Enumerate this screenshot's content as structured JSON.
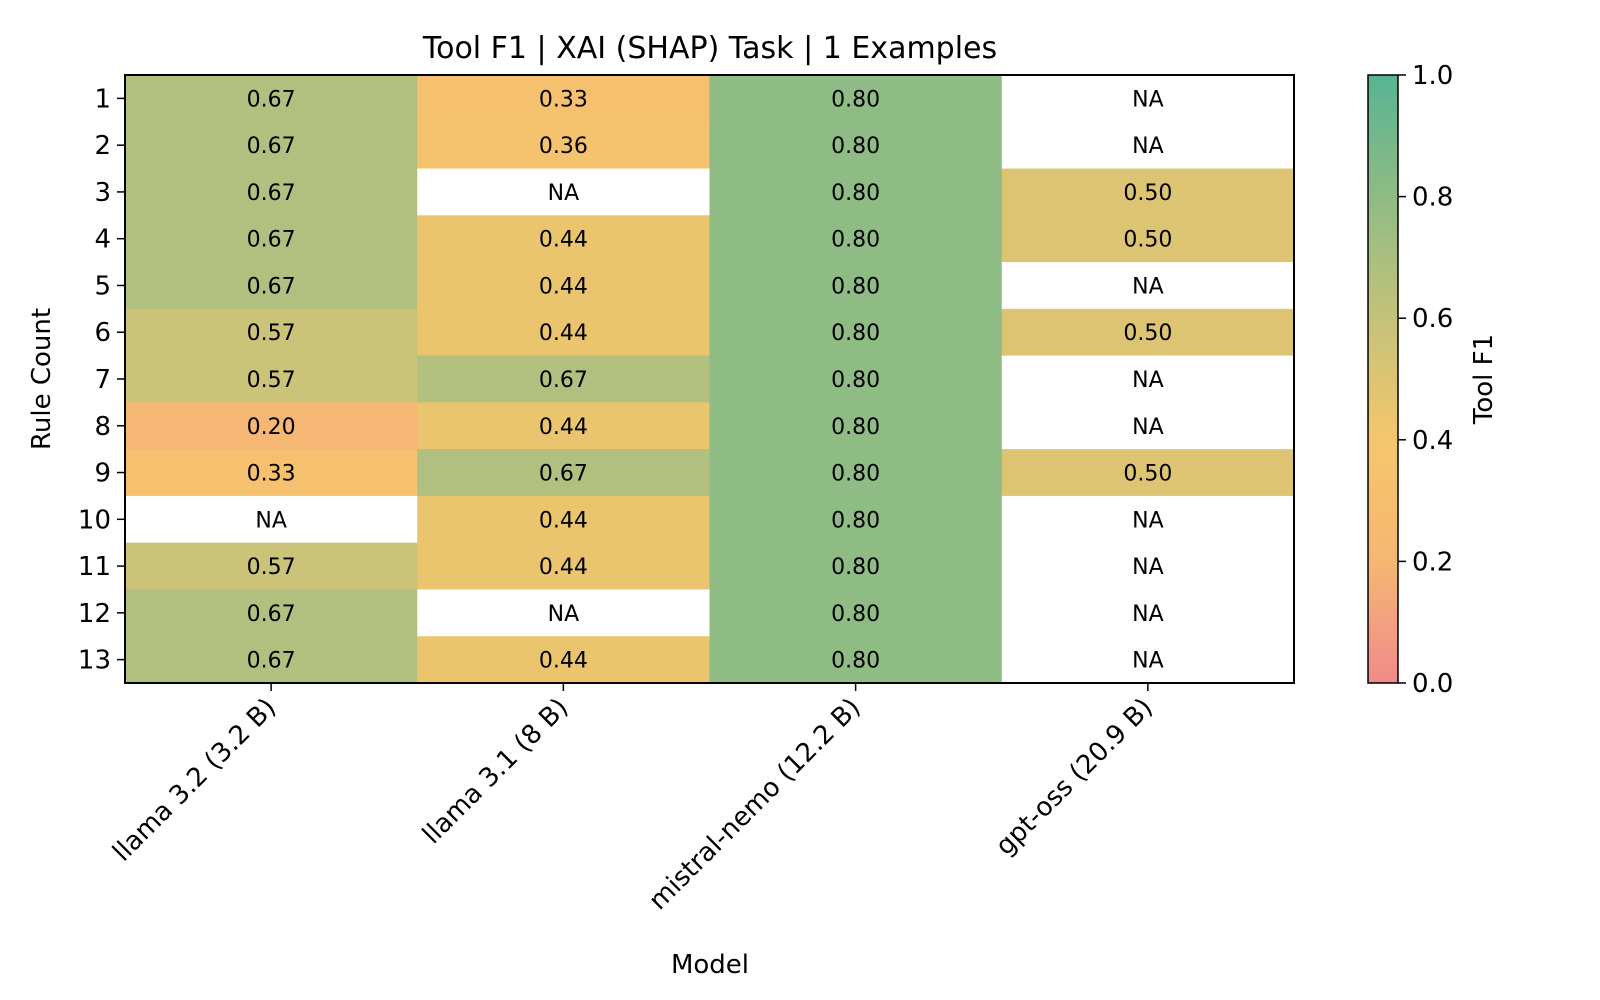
{
  "chart_data": {
    "type": "heatmap",
    "title": "Tool F1 | XAI (SHAP) Task | 1 Examples",
    "xlabel": "Model",
    "ylabel": "Rule Count",
    "x_categories": [
      "llama 3.2 (3.2 B)",
      "llama 3.1 (8 B)",
      "mistral-nemo (12.2 B)",
      "gpt-oss (20.9 B)"
    ],
    "y_categories": [
      "1",
      "2",
      "3",
      "4",
      "5",
      "6",
      "7",
      "8",
      "9",
      "10",
      "11",
      "12",
      "13"
    ],
    "values": [
      [
        0.67,
        0.33,
        0.8,
        null
      ],
      [
        0.67,
        0.36,
        0.8,
        null
      ],
      [
        0.67,
        null,
        0.8,
        0.5
      ],
      [
        0.67,
        0.44,
        0.8,
        0.5
      ],
      [
        0.67,
        0.44,
        0.8,
        null
      ],
      [
        0.57,
        0.44,
        0.8,
        0.5
      ],
      [
        0.57,
        0.67,
        0.8,
        null
      ],
      [
        0.2,
        0.44,
        0.8,
        null
      ],
      [
        0.33,
        0.67,
        0.8,
        0.5
      ],
      [
        null,
        0.44,
        0.8,
        null
      ],
      [
        0.57,
        0.44,
        0.8,
        null
      ],
      [
        0.67,
        null,
        0.8,
        null
      ],
      [
        0.67,
        0.44,
        0.8,
        null
      ]
    ],
    "missing_label": "NA",
    "colorbar": {
      "label": "Tool F1",
      "range": [
        0,
        1
      ],
      "ticks": [
        "0.0",
        "0.2",
        "0.4",
        "0.6",
        "0.8",
        "1.0"
      ],
      "colors": [
        "#f08a8a",
        "#f5b773",
        "#f5c66b",
        "#c4c27a",
        "#8fbb84",
        "#58b393"
      ]
    }
  }
}
